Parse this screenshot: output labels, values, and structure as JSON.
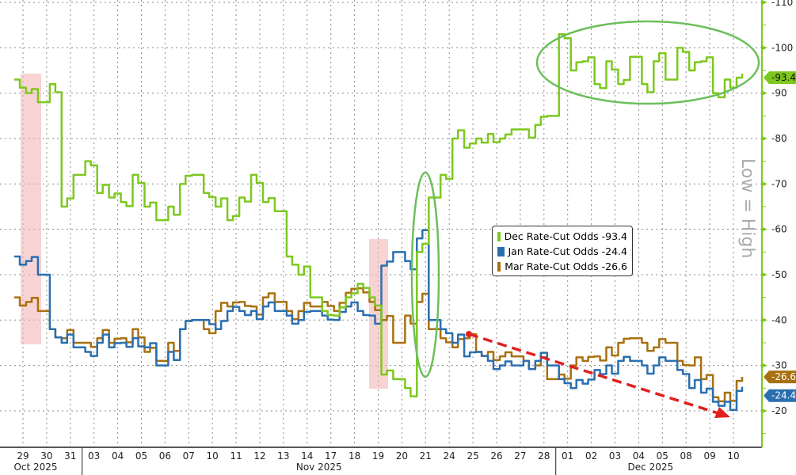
{
  "chart_data": {
    "type": "line",
    "title": "",
    "xlabel": "",
    "ylabel": "",
    "y_axis_side": "right",
    "ylim": [
      10,
      110
    ],
    "yticks": [
      20,
      30,
      40,
      50,
      60,
      70,
      80,
      90,
      100,
      110
    ],
    "grid": true,
    "x": [
      "29",
      "30",
      "31",
      "03",
      "04",
      "05",
      "06",
      "07",
      "10",
      "11",
      "12",
      "13",
      "14",
      "17",
      "18",
      "19",
      "20",
      "21",
      "24",
      "25",
      "26",
      "27",
      "28",
      "01",
      "02",
      "03",
      "04",
      "05",
      "08",
      "09",
      "10"
    ],
    "months": [
      {
        "label": "Oct 2025",
        "start": 0
      },
      {
        "label": "Nov 2025",
        "start": 3
      },
      {
        "label": "Dec 2025",
        "start": 23
      }
    ],
    "series": [
      {
        "name": "Dec Rate-Cut Odds",
        "last": "93.4",
        "color": "#7dc81e",
        "values": [
          [
            93,
            90
          ],
          [
            88,
            92
          ],
          [
            65,
            72
          ],
          [
            75,
            68
          ],
          [
            67,
            66
          ],
          [
            72,
            65
          ],
          [
            62,
            65
          ],
          [
            70,
            72
          ],
          [
            68,
            65
          ],
          [
            62,
            67
          ],
          [
            72,
            66
          ],
          [
            64,
            54
          ],
          [
            50,
            45
          ],
          [
            42,
            41
          ],
          [
            45,
            48
          ],
          [
            45,
            28
          ],
          [
            27,
            25
          ],
          [
            55,
            67
          ],
          [
            72,
            80
          ],
          [
            78,
            80
          ],
          [
            81,
            80
          ],
          [
            82,
            82
          ],
          [
            83,
            85
          ],
          [
            103,
            95
          ],
          [
            97,
            92
          ],
          [
            97,
            92
          ],
          [
            98,
            92
          ],
          [
            97,
            93
          ],
          [
            100,
            95
          ],
          [
            97,
            90
          ],
          [
            93,
            93.4
          ]
        ]
      },
      {
        "name": "Jan Rate-Cut Odds",
        "last": "24.4",
        "color": "#2a6fb0",
        "values": [
          [
            54,
            53
          ],
          [
            50,
            38
          ],
          [
            35,
            34
          ],
          [
            33,
            35
          ],
          [
            34,
            35
          ],
          [
            36,
            34
          ],
          [
            30,
            33
          ],
          [
            38,
            40
          ],
          [
            40,
            38
          ],
          [
            42,
            42
          ],
          [
            42,
            43
          ],
          [
            42,
            41
          ],
          [
            40,
            42
          ],
          [
            41,
            40
          ],
          [
            43,
            42
          ],
          [
            41,
            52
          ],
          [
            55,
            53
          ],
          [
            58,
            40
          ],
          [
            38,
            35
          ],
          [
            32,
            33
          ],
          [
            31,
            30
          ],
          [
            30,
            31
          ],
          [
            31,
            30
          ],
          [
            27,
            25
          ],
          [
            26,
            29
          ],
          [
            30,
            31
          ],
          [
            31,
            30
          ],
          [
            30,
            31
          ],
          [
            29,
            25
          ],
          [
            24,
            22
          ],
          [
            22,
            24.4
          ]
        ]
      },
      {
        "name": "Mar Rate-Cut Odds",
        "last": "26.6",
        "color": "#a8700f",
        "values": [
          [
            45,
            44
          ],
          [
            42,
            38
          ],
          [
            36,
            35
          ],
          [
            35,
            36
          ],
          [
            35,
            36
          ],
          [
            38,
            33
          ],
          [
            31,
            35
          ],
          [
            38,
            40
          ],
          [
            38,
            42
          ],
          [
            43,
            44
          ],
          [
            43,
            45
          ],
          [
            44,
            42
          ],
          [
            42,
            43
          ],
          [
            44,
            42
          ],
          [
            46,
            47
          ],
          [
            44,
            40
          ],
          [
            35,
            41
          ],
          [
            44,
            38
          ],
          [
            36,
            34
          ],
          [
            36,
            33
          ],
          [
            33,
            32
          ],
          [
            32,
            31
          ],
          [
            30,
            27
          ],
          [
            28,
            30
          ],
          [
            31,
            32
          ],
          [
            34,
            35
          ],
          [
            36,
            35
          ],
          [
            34,
            35
          ],
          [
            31,
            30
          ],
          [
            27,
            23
          ],
          [
            24,
            26.6
          ]
        ]
      }
    ],
    "legend_placement": "center-right",
    "annotations": {
      "axis_note": "Low = High"
    }
  }
}
